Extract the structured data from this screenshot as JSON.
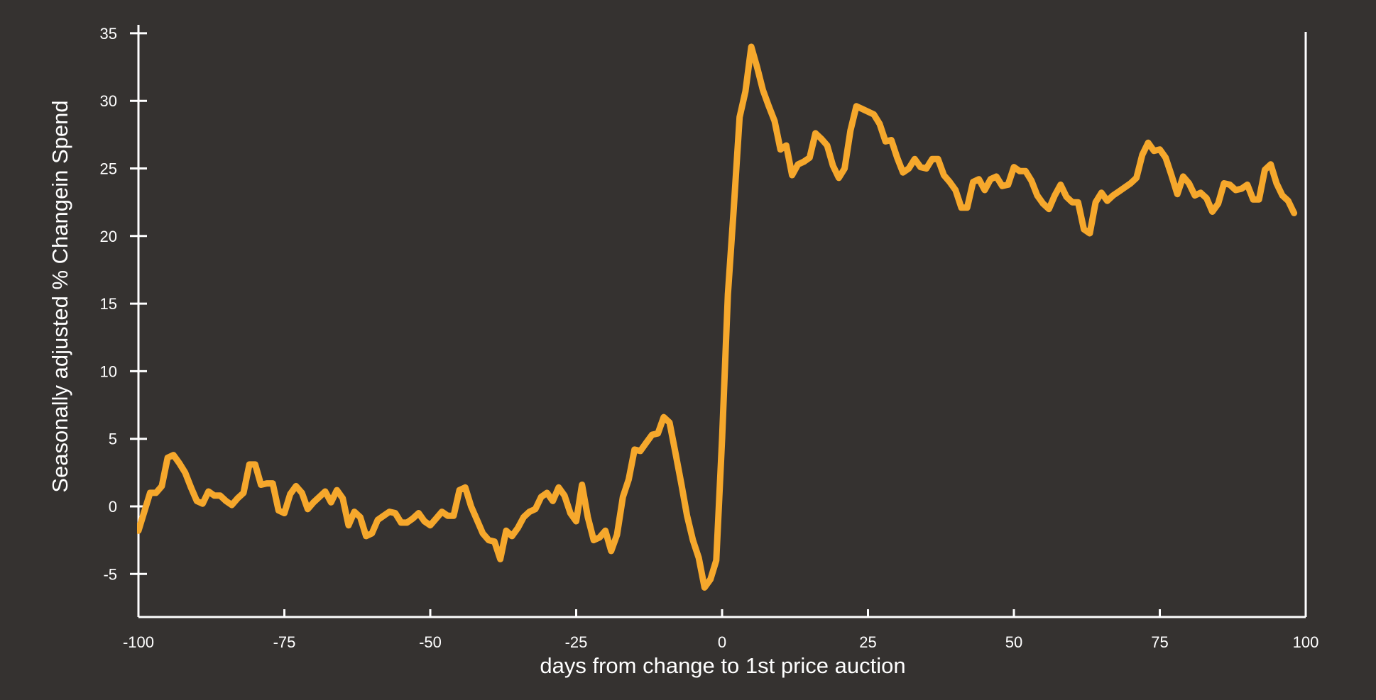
{
  "colors": {
    "background": "#353230",
    "axis": "#ffffff",
    "series": "#f6a82c",
    "text": "#ffffff"
  },
  "chart_data": {
    "type": "line",
    "title": "",
    "xlabel": "days from change to 1st price auction",
    "ylabel": "Seasonally adjusted % Changein Spend",
    "xlim": [
      -100,
      100
    ],
    "ylim": [
      -8,
      35
    ],
    "grid": false,
    "x_ticks": [
      -100,
      -75,
      -50,
      -25,
      0,
      25,
      50,
      75,
      100
    ],
    "x_tick_labels": [
      "-100",
      "-75",
      "-50",
      "-25",
      "0",
      "25",
      "50",
      "75",
      "100"
    ],
    "y_ticks": [
      35,
      30,
      25,
      20,
      15,
      10,
      5,
      0,
      -5
    ],
    "y_tick_labels": [
      "35",
      "30",
      "25",
      "20",
      "15",
      "10",
      "5",
      "0",
      "-5"
    ],
    "series": [
      {
        "color": "#f6a82c",
        "points": [
          [
            -101,
            -1.1
          ],
          [
            -100,
            -1.8
          ],
          [
            -99,
            -0.4
          ],
          [
            -98,
            1.0
          ],
          [
            -97,
            1.0
          ],
          [
            -96,
            1.5
          ],
          [
            -95,
            3.6
          ],
          [
            -94,
            3.8
          ],
          [
            -93,
            3.2
          ],
          [
            -92,
            2.5
          ],
          [
            -91,
            1.4
          ],
          [
            -90,
            0.4
          ],
          [
            -89,
            0.2
          ],
          [
            -88,
            1.1
          ],
          [
            -87,
            0.8
          ],
          [
            -86,
            0.8
          ],
          [
            -85,
            0.4
          ],
          [
            -84,
            0.1
          ],
          [
            -83,
            0.6
          ],
          [
            -82,
            1.0
          ],
          [
            -81,
            3.1
          ],
          [
            -80,
            3.1
          ],
          [
            -79,
            1.6
          ],
          [
            -78,
            1.7
          ],
          [
            -77,
            1.7
          ],
          [
            -76,
            -0.3
          ],
          [
            -75,
            -0.5
          ],
          [
            -74,
            0.9
          ],
          [
            -73,
            1.5
          ],
          [
            -72,
            1.0
          ],
          [
            -71,
            -0.2
          ],
          [
            -70,
            0.3
          ],
          [
            -69,
            0.7
          ],
          [
            -68,
            1.1
          ],
          [
            -67,
            0.3
          ],
          [
            -66,
            1.2
          ],
          [
            -65,
            0.6
          ],
          [
            -64,
            -1.4
          ],
          [
            -63,
            -0.4
          ],
          [
            -62,
            -0.8
          ],
          [
            -61,
            -2.2
          ],
          [
            -60,
            -2.0
          ],
          [
            -59,
            -1.0
          ],
          [
            -58,
            -0.7
          ],
          [
            -57,
            -0.4
          ],
          [
            -56,
            -0.5
          ],
          [
            -55,
            -1.2
          ],
          [
            -54,
            -1.2
          ],
          [
            -53,
            -0.9
          ],
          [
            -52,
            -0.5
          ],
          [
            -51,
            -1.1
          ],
          [
            -50,
            -1.4
          ],
          [
            -49,
            -0.9
          ],
          [
            -48,
            -0.4
          ],
          [
            -47,
            -0.7
          ],
          [
            -46,
            -0.7
          ],
          [
            -45,
            1.2
          ],
          [
            -44,
            1.4
          ],
          [
            -43,
            0.0
          ],
          [
            -42,
            -1.0
          ],
          [
            -41,
            -2.0
          ],
          [
            -40,
            -2.5
          ],
          [
            -39,
            -2.6
          ],
          [
            -38,
            -3.9
          ],
          [
            -37,
            -1.8
          ],
          [
            -36,
            -2.2
          ],
          [
            -35,
            -1.6
          ],
          [
            -34,
            -0.8
          ],
          [
            -33,
            -0.4
          ],
          [
            -32,
            -0.2
          ],
          [
            -31,
            0.7
          ],
          [
            -30,
            1.0
          ],
          [
            -29,
            0.4
          ],
          [
            -28,
            1.4
          ],
          [
            -27,
            0.8
          ],
          [
            -26,
            -0.5
          ],
          [
            -25,
            -1.1
          ],
          [
            -24,
            1.6
          ],
          [
            -23,
            -0.8
          ],
          [
            -22,
            -2.5
          ],
          [
            -21,
            -2.3
          ],
          [
            -20,
            -1.8
          ],
          [
            -19,
            -3.3
          ],
          [
            -18,
            -2.1
          ],
          [
            -17,
            0.7
          ],
          [
            -16,
            2.0
          ],
          [
            -15,
            4.2
          ],
          [
            -14,
            4.1
          ],
          [
            -13,
            4.7
          ],
          [
            -12,
            5.3
          ],
          [
            -11,
            5.4
          ],
          [
            -10,
            6.6
          ],
          [
            -9,
            6.2
          ],
          [
            -8,
            4.0
          ],
          [
            -7,
            1.7
          ],
          [
            -6,
            -0.7
          ],
          [
            -5,
            -2.5
          ],
          [
            -4,
            -3.8
          ],
          [
            -3,
            -6.0
          ],
          [
            -2,
            -5.4
          ],
          [
            -1,
            -4.0
          ],
          [
            0,
            5.0
          ],
          [
            1,
            15.7
          ],
          [
            2,
            22.0
          ],
          [
            3,
            28.8
          ],
          [
            4,
            30.7
          ],
          [
            5,
            34.0
          ],
          [
            6,
            32.5
          ],
          [
            7,
            30.8
          ],
          [
            8,
            29.6
          ],
          [
            9,
            28.5
          ],
          [
            10,
            26.4
          ],
          [
            11,
            26.7
          ],
          [
            12,
            24.5
          ],
          [
            13,
            25.3
          ],
          [
            14,
            25.5
          ],
          [
            15,
            25.8
          ],
          [
            16,
            27.6
          ],
          [
            17,
            27.2
          ],
          [
            18,
            26.7
          ],
          [
            19,
            25.2
          ],
          [
            20,
            24.3
          ],
          [
            21,
            25.0
          ],
          [
            22,
            27.8
          ],
          [
            23,
            29.6
          ],
          [
            24,
            29.4
          ],
          [
            25,
            29.2
          ],
          [
            26,
            29.0
          ],
          [
            27,
            28.3
          ],
          [
            28,
            27.0
          ],
          [
            29,
            27.1
          ],
          [
            30,
            25.8
          ],
          [
            31,
            24.7
          ],
          [
            32,
            25.0
          ],
          [
            33,
            25.7
          ],
          [
            34,
            25.1
          ],
          [
            35,
            25.0
          ],
          [
            36,
            25.7
          ],
          [
            37,
            25.7
          ],
          [
            38,
            24.5
          ],
          [
            39,
            24.0
          ],
          [
            40,
            23.4
          ],
          [
            41,
            22.1
          ],
          [
            42,
            22.1
          ],
          [
            43,
            24.0
          ],
          [
            44,
            24.2
          ],
          [
            45,
            23.4
          ],
          [
            46,
            24.2
          ],
          [
            47,
            24.4
          ],
          [
            48,
            23.7
          ],
          [
            49,
            23.8
          ],
          [
            50,
            25.1
          ],
          [
            51,
            24.8
          ],
          [
            52,
            24.8
          ],
          [
            53,
            24.1
          ],
          [
            54,
            23.0
          ],
          [
            55,
            22.4
          ],
          [
            56,
            22.0
          ],
          [
            57,
            23.0
          ],
          [
            58,
            23.8
          ],
          [
            59,
            22.9
          ],
          [
            60,
            22.5
          ],
          [
            61,
            22.5
          ],
          [
            62,
            20.5
          ],
          [
            63,
            20.2
          ],
          [
            64,
            22.5
          ],
          [
            65,
            23.2
          ],
          [
            66,
            22.6
          ],
          [
            67,
            23.0
          ],
          [
            68,
            23.3
          ],
          [
            69,
            23.6
          ],
          [
            70,
            23.9
          ],
          [
            71,
            24.3
          ],
          [
            72,
            26.0
          ],
          [
            73,
            26.9
          ],
          [
            74,
            26.3
          ],
          [
            75,
            26.4
          ],
          [
            76,
            25.8
          ],
          [
            77,
            24.5
          ],
          [
            78,
            23.1
          ],
          [
            79,
            24.4
          ],
          [
            80,
            23.9
          ],
          [
            81,
            23.0
          ],
          [
            82,
            23.2
          ],
          [
            83,
            22.8
          ],
          [
            84,
            21.8
          ],
          [
            85,
            22.4
          ],
          [
            86,
            23.9
          ],
          [
            87,
            23.8
          ],
          [
            88,
            23.4
          ],
          [
            89,
            23.5
          ],
          [
            90,
            23.8
          ],
          [
            91,
            22.7
          ],
          [
            92,
            22.7
          ],
          [
            93,
            24.9
          ],
          [
            94,
            25.3
          ],
          [
            95,
            23.9
          ],
          [
            96,
            23.0
          ],
          [
            97,
            22.6
          ],
          [
            98,
            21.7
          ]
        ]
      }
    ]
  }
}
